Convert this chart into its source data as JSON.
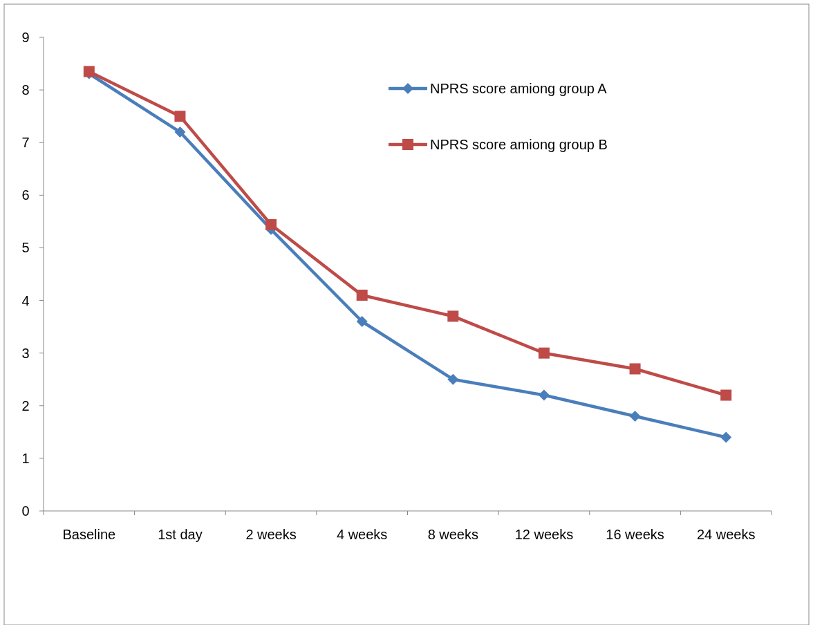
{
  "chart_data": {
    "type": "line",
    "categories": [
      "Baseline",
      "1st day",
      "2 weeks",
      "4 weeks",
      "8 weeks",
      "12 weeks",
      "16 weeks",
      "24 weeks"
    ],
    "series": [
      {
        "name": "NPRS score amiong group A",
        "color": "#4a7ebb",
        "marker": "diamond",
        "values": [
          8.31,
          7.2,
          5.35,
          3.6,
          2.5,
          2.2,
          1.8,
          1.4
        ]
      },
      {
        "name": "NPRS score amiong group B",
        "color": "#be4b48",
        "marker": "square",
        "values": [
          8.35,
          7.5,
          5.44,
          4.1,
          3.7,
          3.0,
          2.7,
          2.2
        ]
      }
    ],
    "ylim": [
      0,
      9
    ],
    "yticks": [
      0,
      1,
      2,
      3,
      4,
      5,
      6,
      7,
      8,
      9
    ],
    "grid": false,
    "legend": "top right"
  }
}
